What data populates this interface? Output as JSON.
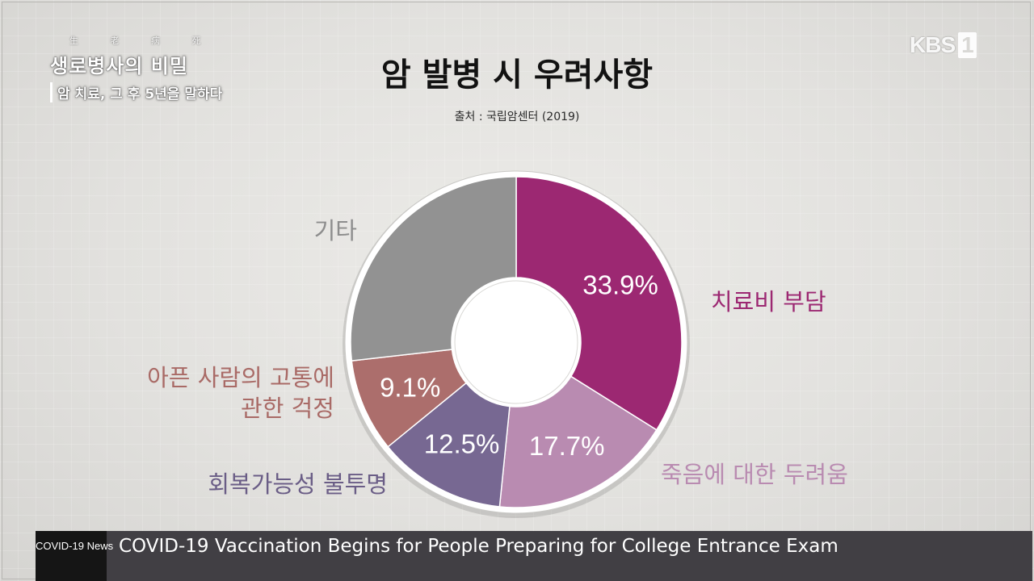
{
  "broadcast": {
    "program_hanja": "生 老 病 死",
    "program_title": "생로병사의 비밀",
    "program_subtitle": "암 치료, 그 후 5년을 말하다",
    "channel_logo": "KBS",
    "channel_number": "1"
  },
  "ticker": {
    "tag": "COVID-19 News",
    "text": "COVID-19 Vaccination Begins for People Preparing for College Entrance Exam"
  },
  "chart_data": {
    "type": "pie",
    "donut": true,
    "title": "암 발병 시 우려사항",
    "subtitle": "출처 : 국립암센터 (2019)",
    "start_angle_deg": 0,
    "direction": "clockwise",
    "slices": [
      {
        "category": "치료비 부담",
        "value": 33.9,
        "label": "33.9%",
        "color": "#9c2872",
        "label_color": "#9c2872"
      },
      {
        "category": "죽음에 대한 두려움",
        "value": 17.7,
        "label": "17.7%",
        "color": "#b98bb1",
        "label_color": "#b98bb1"
      },
      {
        "category": "회복가능성 불투명",
        "value": 12.5,
        "label": "12.5%",
        "color": "#776892",
        "label_color": "#6a5d86"
      },
      {
        "category": "아픈 사람의 고통에 관한 걱정",
        "value": 9.1,
        "label": "9.1%",
        "color": "#ac6e6c",
        "label_color": "#a96a66"
      },
      {
        "category": "기타",
        "value": 26.8,
        "label": "",
        "color": "#929292",
        "label_color": "#8d8d8d"
      }
    ]
  }
}
